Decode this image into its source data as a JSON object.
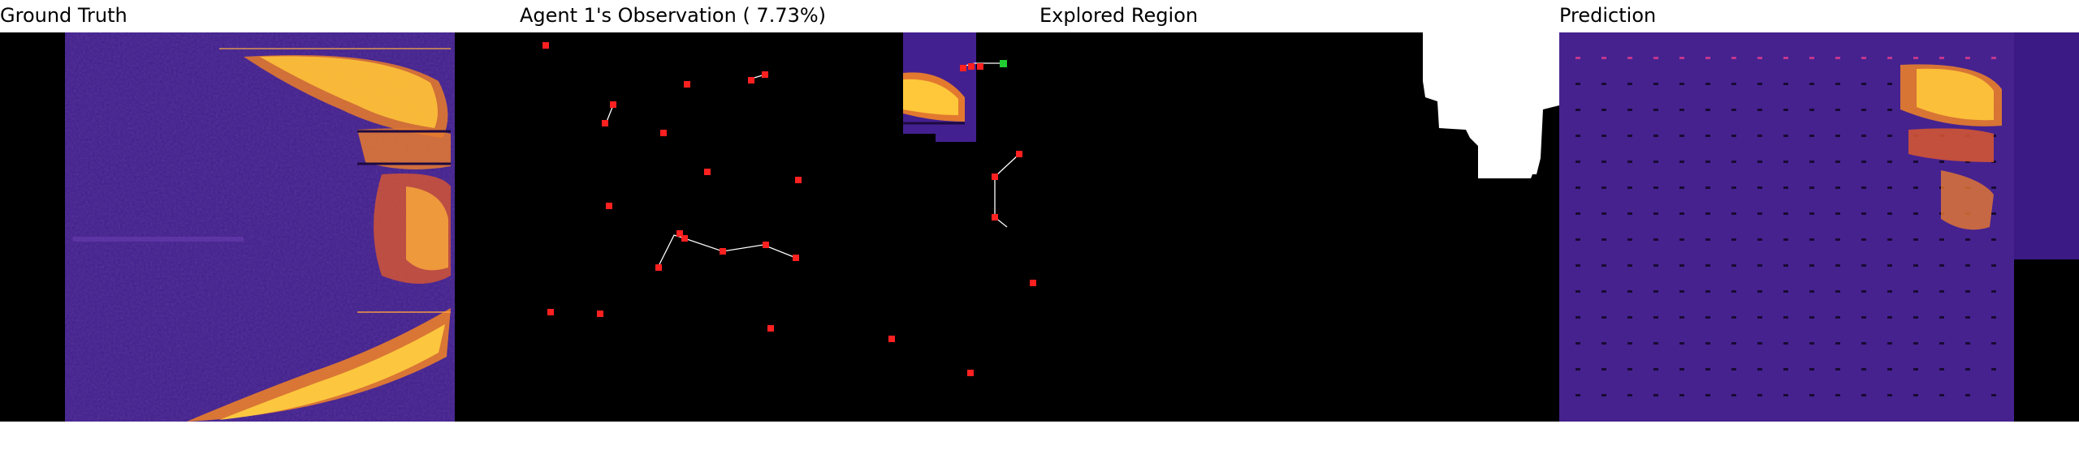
{
  "panels": {
    "ground_truth": {
      "title": "Ground Truth"
    },
    "observation": {
      "title": "Agent 1's Observation ( 7.73%)"
    },
    "explored": {
      "title": "Explored Region"
    },
    "prediction": {
      "title": "Prediction"
    }
  },
  "colors": {
    "background": "#000000",
    "heatmap_low": "#3b1a86",
    "heatmap_mid": "#c2368f",
    "heatmap_high": "#ffcc33",
    "agent_marker": "#ff2020",
    "current_agent_marker": "#22cc33",
    "trajectory": "#ffffff",
    "explored_fill": "#ffffff"
  },
  "icons": {
    "agent_marker": "red-square-marker",
    "current_agent_marker": "green-square-marker"
  }
}
